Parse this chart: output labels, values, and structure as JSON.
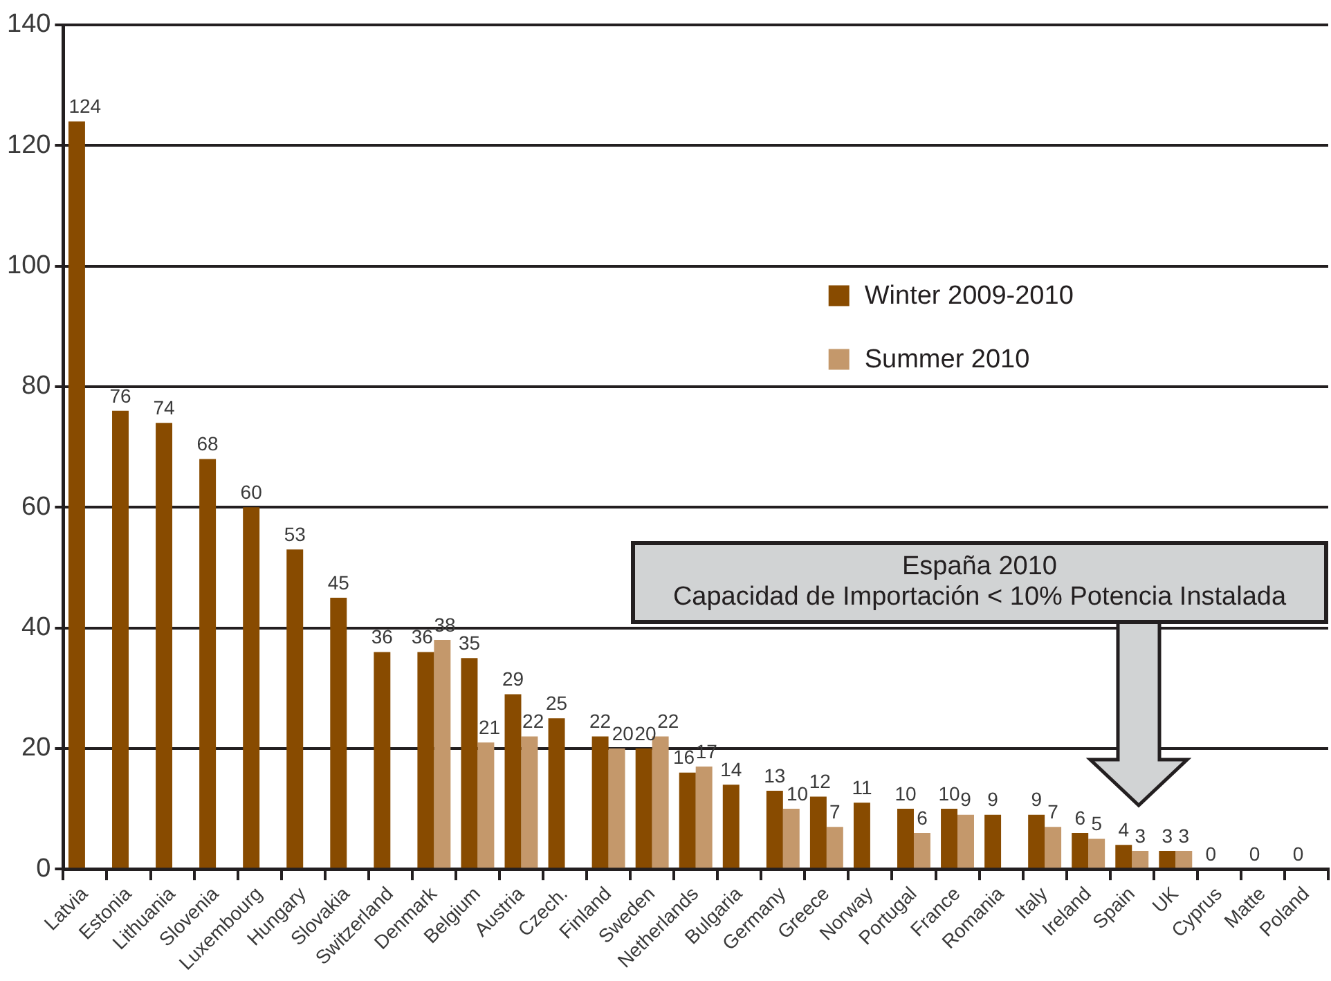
{
  "chart_data": {
    "type": "bar",
    "categories": [
      "Latvia",
      "Estonia",
      "Lithuania",
      "Slovenia",
      "Luxembourg",
      "Hungary",
      "Slovakia",
      "Switzerland",
      "Denmark",
      "Belgium",
      "Austria",
      "Czech.",
      "Finland",
      "Sweden",
      "Netherlands",
      "Bulgaria",
      "Germany",
      "Greece",
      "Norway",
      "Portugal",
      "France",
      "Romania",
      "Italy",
      "Ireland",
      "Spain",
      "UK",
      "Cyprus",
      "Matte",
      "Poland"
    ],
    "series": [
      {
        "name": "Winter 2009-2010",
        "color": "#884b00",
        "values": [
          124,
          76,
          74,
          68,
          60,
          53,
          45,
          36,
          36,
          35,
          29,
          25,
          22,
          20,
          16,
          14,
          13,
          12,
          11,
          10,
          10,
          9,
          9,
          6,
          4,
          3,
          0,
          0,
          0
        ]
      },
      {
        "name": "Summer 2010",
        "color": "#c4986b",
        "values": [
          null,
          null,
          null,
          null,
          null,
          null,
          null,
          null,
          38,
          21,
          22,
          null,
          20,
          22,
          17,
          null,
          10,
          7,
          null,
          6,
          9,
          null,
          7,
          5,
          3,
          3,
          null,
          null,
          null
        ]
      }
    ],
    "ylim": [
      0,
      140
    ],
    "yticks": [
      0,
      20,
      40,
      60,
      80,
      100,
      120,
      140
    ],
    "grid": "y",
    "legend": "top right",
    "data_labels": true,
    "annotations": [
      "España 2010\nCapacidad de Importación < 10% Potencia Instalada"
    ]
  }
}
